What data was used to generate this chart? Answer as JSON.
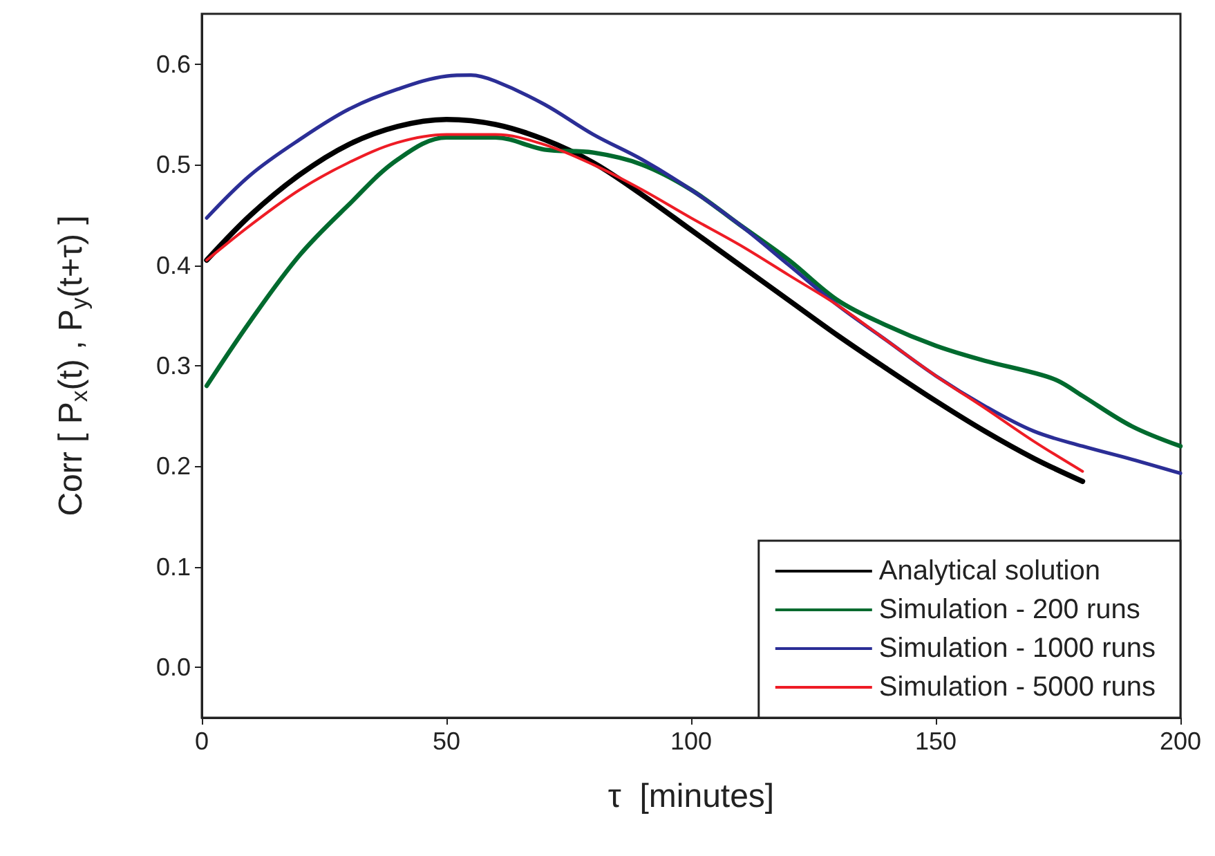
{
  "chart_data": {
    "type": "line",
    "xlabel": "τ  [minutes]",
    "ylabel": "Corr [ P$_{x}$(t) , P$_{y}$(t+τ) ]",
    "xlim": [
      0,
      200
    ],
    "xticks": [
      0,
      50,
      100,
      150,
      200
    ],
    "ylim": [
      -0.05,
      0.65
    ],
    "yticks": [
      {
        "value": 0,
        "label": "0.0"
      },
      0.1,
      0.2,
      0.3,
      0.4,
      0.5,
      0.6
    ],
    "grid": false,
    "legend": "bottom right",
    "marker": "none",
    "line_style": "solid",
    "series": [
      {
        "name": "Analytical solution",
        "color": "#000000",
        "x": [
          1,
          10,
          20,
          30,
          40,
          50,
          60,
          70,
          80,
          90,
          100,
          110,
          120,
          130,
          140,
          150,
          160,
          170,
          180
        ],
        "values": [
          0.405,
          0.45,
          0.49,
          0.52,
          0.538,
          0.545,
          0.54,
          0.525,
          0.502,
          0.47,
          0.435,
          0.4,
          0.365,
          0.33,
          0.297,
          0.265,
          0.235,
          0.208,
          0.185
        ]
      },
      {
        "name": "Simulation - 200 runs",
        "color": "#006a2e",
        "x": [
          1,
          10,
          20,
          30,
          40,
          50,
          60,
          70,
          80,
          90,
          100,
          110,
          120,
          130,
          140,
          150,
          160,
          170,
          175,
          180,
          190,
          200
        ],
        "values": [
          0.28,
          0.345,
          0.41,
          0.46,
          0.505,
          0.527,
          0.527,
          0.515,
          0.512,
          0.5,
          0.475,
          0.44,
          0.405,
          0.365,
          0.34,
          0.32,
          0.305,
          0.293,
          0.285,
          0.27,
          0.24,
          0.22
        ]
      },
      {
        "name": "Simulation - 1000 runs",
        "color": "#2b2e96",
        "x": [
          1,
          10,
          20,
          30,
          40,
          50,
          55,
          60,
          70,
          80,
          90,
          100,
          110,
          120,
          130,
          140,
          150,
          160,
          170,
          180,
          190,
          200
        ],
        "values": [
          0.447,
          0.49,
          0.525,
          0.555,
          0.575,
          0.588,
          0.589,
          0.583,
          0.56,
          0.53,
          0.505,
          0.475,
          0.44,
          0.4,
          0.36,
          0.325,
          0.29,
          0.26,
          0.235,
          0.22,
          0.207,
          0.193
        ]
      },
      {
        "name": "Simulation - 5000 runs",
        "color": "#ee1c25",
        "x": [
          1,
          10,
          20,
          30,
          40,
          50,
          60,
          70,
          80,
          90,
          100,
          110,
          120,
          130,
          140,
          150,
          160,
          170,
          180
        ],
        "values": [
          0.405,
          0.44,
          0.475,
          0.502,
          0.522,
          0.53,
          0.53,
          0.52,
          0.5,
          0.475,
          0.447,
          0.42,
          0.39,
          0.36,
          0.325,
          0.29,
          0.258,
          0.225,
          0.195
        ]
      }
    ]
  }
}
